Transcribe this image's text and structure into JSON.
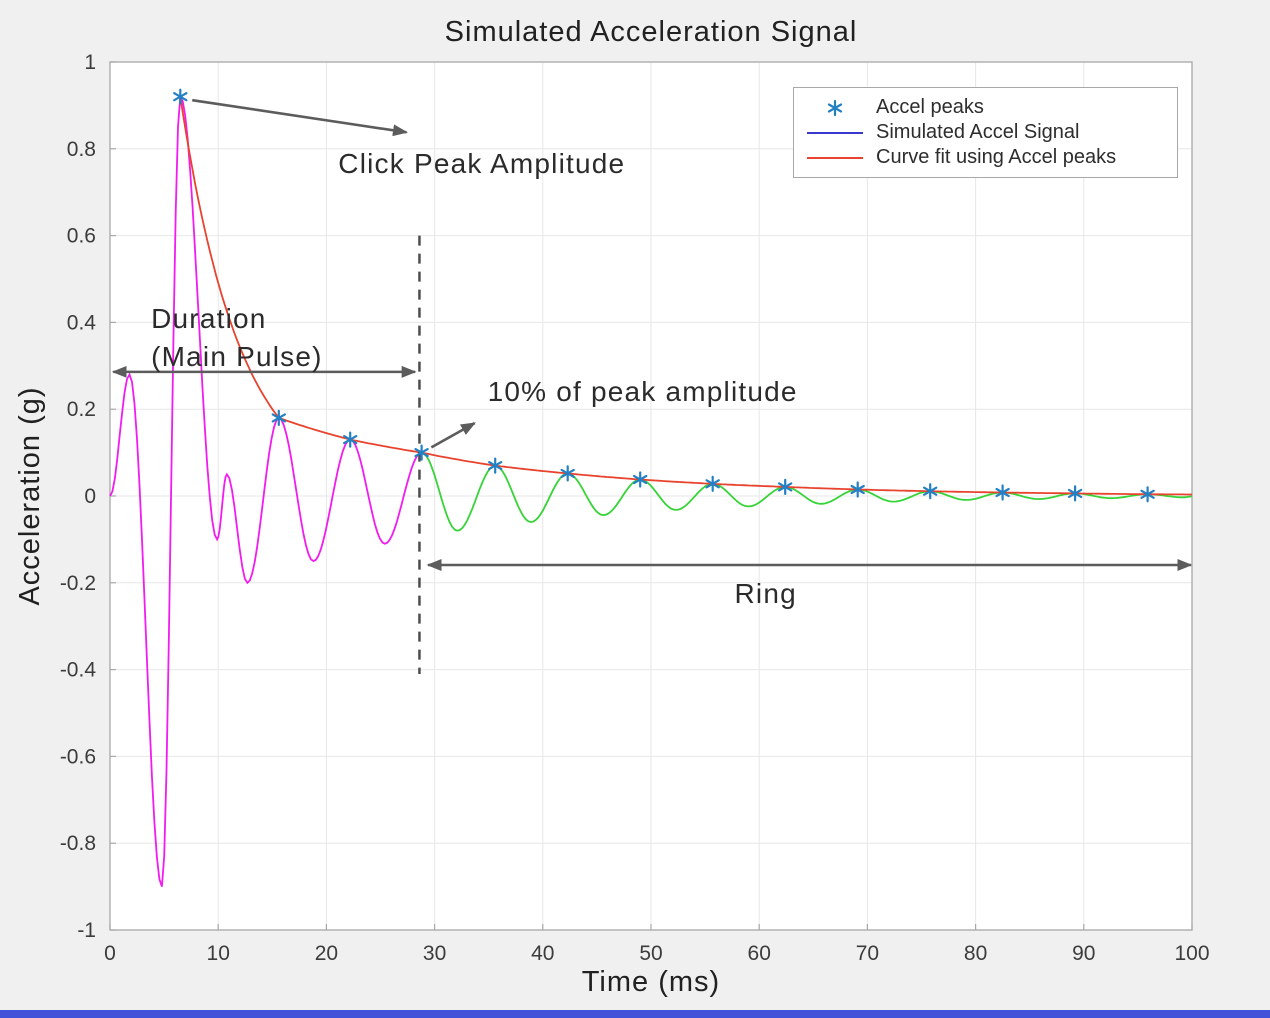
{
  "figure": {
    "bg": "#f0f0f1",
    "plot_bg": "#ffffff",
    "grid": "#e7e7e7",
    "axis": "#a8a8a8",
    "tick_label": "#3c3c3c",
    "bottom_bar": "#4353d9"
  },
  "chart_data": {
    "type": "line",
    "title": "Simulated Acceleration Signal",
    "xlabel": "Time (ms)",
    "ylabel": "Acceleration (g)",
    "xlim": [
      0,
      100
    ],
    "ylim": [
      -1,
      1
    ],
    "xticks": [
      0,
      10,
      20,
      30,
      40,
      50,
      60,
      70,
      80,
      90,
      100
    ],
    "yticks": [
      -1,
      -0.8,
      -0.6,
      -0.4,
      -0.2,
      0,
      0.2,
      0.4,
      0.6,
      0.8,
      1
    ],
    "grid": true,
    "colors": {
      "main_pulse": "#f21bf0",
      "ring_signal": "#37d437",
      "curve_fit": "#e8432e",
      "signal_legend": "#3939cf",
      "peaks": "#2380c3",
      "annotation_arrow": "#5c5c5c",
      "annotation_text": "#2b2b2b",
      "threshold_line": "#4d4d4d"
    },
    "split_time": 29.0,
    "signal_extrema": [
      [
        0,
        0
      ],
      [
        1.8,
        0.28
      ],
      [
        4.8,
        -0.9
      ],
      [
        6.5,
        0.92
      ],
      [
        9.9,
        -0.1
      ],
      [
        10.8,
        0.05
      ],
      [
        12.7,
        -0.2
      ],
      [
        15.6,
        0.18
      ],
      [
        18.8,
        -0.15
      ],
      [
        22.2,
        0.13
      ],
      [
        25.4,
        -0.11
      ],
      [
        28.8,
        0.1
      ],
      [
        32.1,
        -0.08
      ],
      [
        35.6,
        0.07
      ],
      [
        38.9,
        -0.06
      ],
      [
        42.3,
        0.052
      ],
      [
        45.6,
        -0.044
      ],
      [
        49,
        0.038
      ],
      [
        52.3,
        -0.032
      ],
      [
        55.7,
        0.028
      ],
      [
        59,
        -0.024
      ],
      [
        62.4,
        0.021
      ],
      [
        65.7,
        -0.018
      ],
      [
        69.1,
        0.015
      ],
      [
        72.4,
        -0.013
      ],
      [
        75.8,
        0.011
      ],
      [
        79.1,
        -0.009
      ],
      [
        82.5,
        0.008
      ],
      [
        85.8,
        -0.007
      ],
      [
        89.2,
        0.006
      ],
      [
        92.5,
        -0.005
      ],
      [
        95.9,
        0.004
      ],
      [
        99.2,
        -0.003
      ],
      [
        100,
        -0.001
      ]
    ],
    "peaks": [
      [
        6.5,
        0.92
      ],
      [
        15.6,
        0.18
      ],
      [
        22.2,
        0.13
      ],
      [
        28.8,
        0.1
      ],
      [
        35.6,
        0.07
      ],
      [
        42.3,
        0.052
      ],
      [
        49,
        0.038
      ],
      [
        55.7,
        0.028
      ],
      [
        62.4,
        0.021
      ],
      [
        69.1,
        0.015
      ],
      [
        75.8,
        0.011
      ],
      [
        82.5,
        0.008
      ],
      [
        89.2,
        0.006
      ],
      [
        95.9,
        0.004
      ]
    ],
    "fit_end_point": [
      100,
      0.0035
    ],
    "threshold_line": {
      "x": 28.6,
      "y_top": 0.6,
      "y_bottom": -0.41
    },
    "legend": {
      "position": "top-right",
      "entries": [
        {
          "label": "Accel peaks",
          "type": "marker"
        },
        {
          "label": "Simulated Accel Signal",
          "type": "line"
        },
        {
          "label": "Curve fit using Accel peaks",
          "type": "line"
        }
      ]
    },
    "annotations": [
      {
        "id": "click-peak-amplitude",
        "text": "Click Peak Amplitude",
        "x": 21.1,
        "y": 0.744,
        "anchor": "start",
        "font_size": 28,
        "arrow": {
          "x1": 7.6,
          "y1": 0.912,
          "x2": 27.4,
          "y2": 0.838,
          "heads": "end"
        }
      },
      {
        "id": "duration-main-pulse",
        "lines": [
          "Duration",
          "(Main Pulse)"
        ],
        "x": 3.8,
        "y": 0.387,
        "anchor": "start",
        "font_size": 28,
        "line_height_px": 38,
        "arrow": {
          "x1": 0.3,
          "y1": 0.286,
          "x2": 28.2,
          "y2": 0.286,
          "heads": "both"
        }
      },
      {
        "id": "ten-percent-of-peak",
        "text": "10% of peak amplitude",
        "x": 34.9,
        "y": 0.219,
        "anchor": "start",
        "font_size": 28,
        "arrow": {
          "x1": 29.7,
          "y1": 0.112,
          "x2": 33.7,
          "y2": 0.168,
          "heads": "end"
        }
      },
      {
        "id": "ring",
        "text": "Ring",
        "x": 60.6,
        "y": -0.247,
        "anchor": "middle",
        "font_size": 28,
        "arrow": {
          "x1": 29.4,
          "y1": -0.159,
          "x2": 99.9,
          "y2": -0.159,
          "heads": "both"
        }
      }
    ]
  }
}
